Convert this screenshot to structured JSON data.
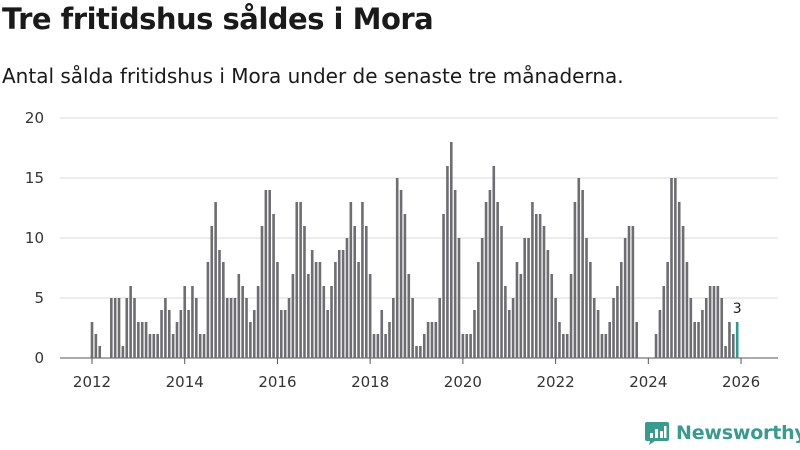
{
  "title": "Tre fritidshus såldes i Mora",
  "subtitle": "Antal sålda fritidshus i Mora under de senaste tre månaderna.",
  "brand": "Newsworthy",
  "colors": {
    "bar": "#6d6d72",
    "highlight": "#2a9d8f",
    "grid": "#d9d9d9",
    "brand": "#3a9a8e"
  },
  "chart_data": {
    "type": "bar",
    "title": "Tre fritidshus såldes i Mora",
    "xlabel": "",
    "ylabel": "",
    "ylim": [
      0,
      20
    ],
    "yticks": [
      "0",
      "5",
      "10",
      "15",
      "20"
    ],
    "xticks": [
      "2012",
      "2014",
      "2016",
      "2018",
      "2020",
      "2022",
      "2024",
      "2026"
    ],
    "xtick_positions": [
      2012,
      2014,
      2016,
      2018,
      2020,
      2022,
      2024,
      2026
    ],
    "start_year": 2012,
    "start_month": 1,
    "end_year": 2026,
    "end_month": 1,
    "series": [
      {
        "name": "Antal sålda fritidshus (rullande tre månader)",
        "values": [
          3,
          2,
          1,
          0,
          0,
          5,
          5,
          5,
          1,
          5,
          6,
          5,
          3,
          3,
          3,
          2,
          2,
          2,
          4,
          5,
          4,
          2,
          3,
          4,
          6,
          4,
          6,
          5,
          2,
          2,
          8,
          11,
          13,
          9,
          8,
          5,
          5,
          5,
          7,
          6,
          5,
          3,
          4,
          6,
          11,
          14,
          14,
          12,
          8,
          4,
          4,
          5,
          7,
          13,
          13,
          11,
          7,
          9,
          8,
          8,
          6,
          4,
          6,
          8,
          9,
          9,
          10,
          13,
          11,
          8,
          13,
          11,
          7,
          2,
          2,
          4,
          2,
          3,
          5,
          15,
          14,
          12,
          7,
          5,
          1,
          1,
          2,
          3,
          3,
          3,
          5,
          12,
          16,
          18,
          14,
          10,
          2,
          2,
          2,
          4,
          8,
          10,
          13,
          14,
          16,
          13,
          11,
          6,
          4,
          5,
          8,
          7,
          10,
          10,
          13,
          12,
          12,
          11,
          9,
          7,
          5,
          3,
          2,
          2,
          7,
          13,
          15,
          14,
          10,
          8,
          5,
          4,
          2,
          2,
          3,
          5,
          6,
          8,
          10,
          11,
          11,
          3,
          0,
          0,
          0,
          0,
          2,
          4,
          6,
          8,
          15,
          15,
          13,
          11,
          8,
          5,
          3,
          3,
          4,
          5,
          6,
          6,
          6,
          5,
          1,
          3,
          2,
          3
        ]
      }
    ],
    "annotation": {
      "label": "3",
      "index": "last"
    }
  }
}
